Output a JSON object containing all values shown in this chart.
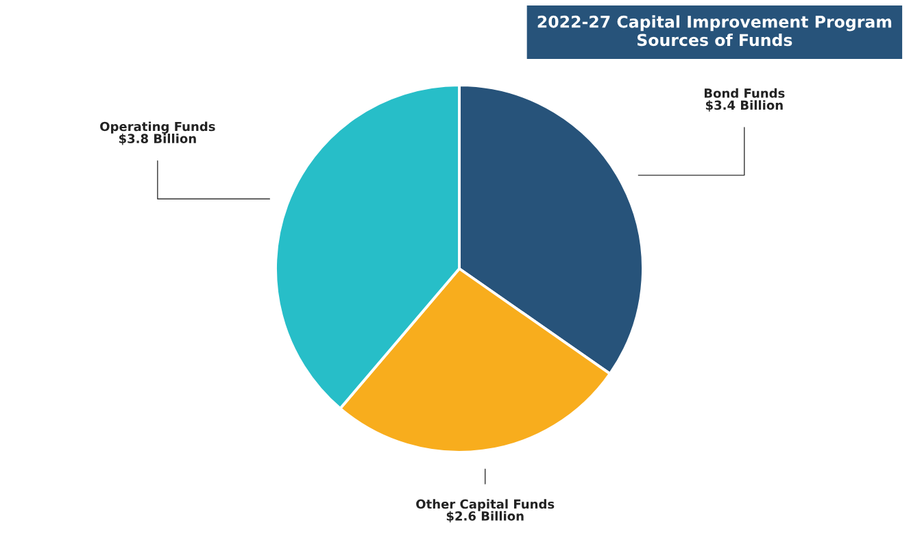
{
  "chart_data": {
    "type": "pie",
    "title": "2022-27 Capital Improvement Program\nSources of Funds",
    "categories": [
      "Bond Funds",
      "Other Capital Funds",
      "Operating Funds"
    ],
    "values": [
      3.4,
      2.6,
      3.8
    ],
    "colors": [
      "#27537a",
      "#f8ad1d",
      "#27bec8"
    ],
    "value_labels": [
      "$3.4 Billion",
      "$2.6 Billion",
      "$3.8 Billion"
    ],
    "legend": false
  }
}
